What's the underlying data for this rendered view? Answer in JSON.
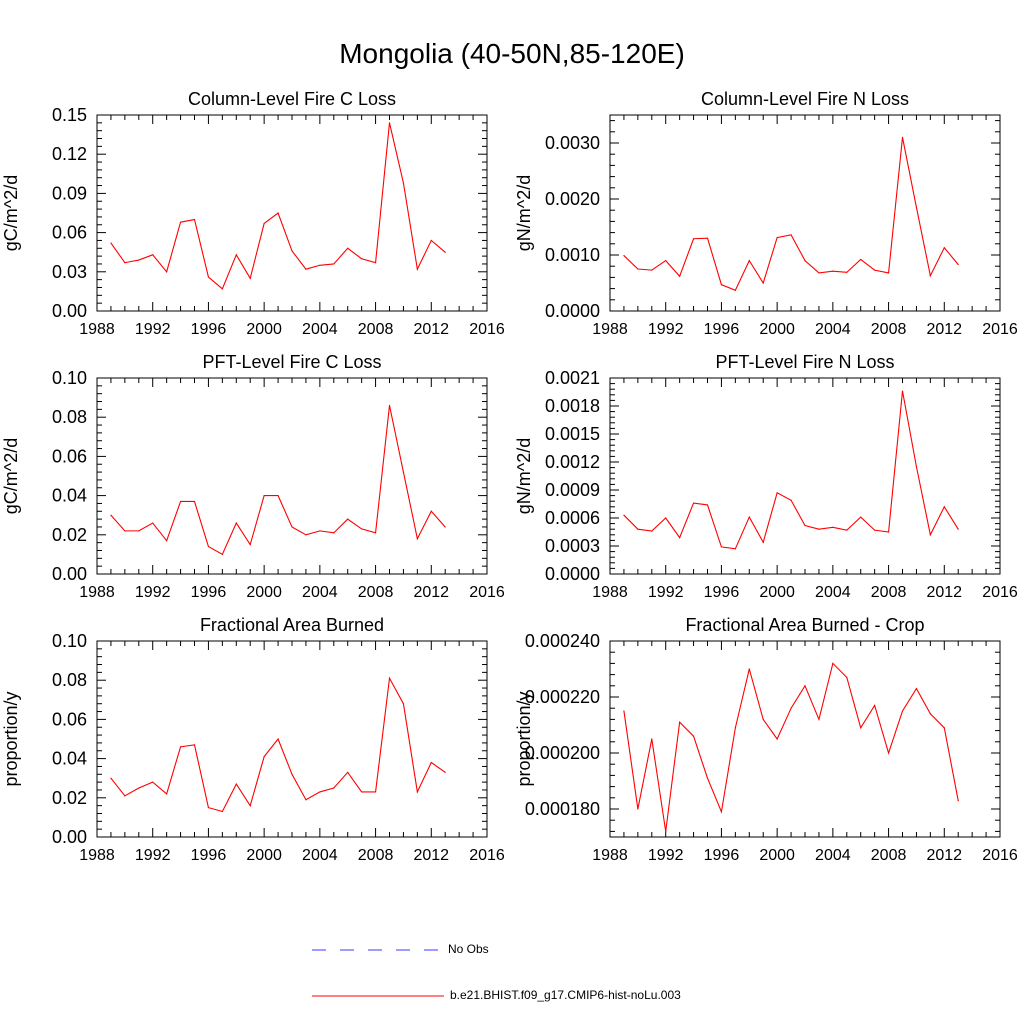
{
  "page": {
    "title": "Mongolia (40-50N,85-120E)"
  },
  "legend": {
    "entries": [
      {
        "label": "No Obs",
        "color": "#3b3bff",
        "style": "dashed"
      },
      {
        "label": "b.e21.BHIST.f09_g17.CMIP6-hist-noLu.003",
        "color": "#ff0000",
        "style": "solid"
      }
    ]
  },
  "chart_data": [
    {
      "type": "line",
      "title": "Column-Level Fire C Loss",
      "ylabel": "gC/m^2/d",
      "xlim": [
        1988,
        2016
      ],
      "ylim": [
        0,
        0.15
      ],
      "xticks": [
        "1988",
        "1992",
        "1996",
        "2000",
        "2004",
        "2008",
        "2012",
        "2016"
      ],
      "yticks": [
        "0.00",
        "0.03",
        "0.06",
        "0.09",
        "0.12",
        "0.15"
      ],
      "series": [
        {
          "color": "#ff0000",
          "x": [
            1989,
            1990,
            1991,
            1992,
            1993,
            1994,
            1995,
            1996,
            1997,
            1998,
            1999,
            2000,
            2001,
            2002,
            2003,
            2004,
            2005,
            2006,
            2007,
            2008,
            2009,
            2010,
            2011,
            2012,
            2013
          ],
          "values": [
            0.052,
            0.037,
            0.039,
            0.043,
            0.03,
            0.068,
            0.07,
            0.026,
            0.017,
            0.043,
            0.025,
            0.067,
            0.075,
            0.046,
            0.032,
            0.035,
            0.036,
            0.048,
            0.04,
            0.037,
            0.144,
            0.098,
            0.032,
            0.054,
            0.045
          ]
        }
      ]
    },
    {
      "type": "line",
      "title": "Column-Level Fire N Loss",
      "ylabel": "gN/m^2/d",
      "xlim": [
        1988,
        2016
      ],
      "ylim": [
        0,
        0.0035
      ],
      "xticks": [
        "1988",
        "1992",
        "1996",
        "2000",
        "2004",
        "2008",
        "2012",
        "2016"
      ],
      "yticks": [
        "0.0000",
        "0.0010",
        "0.0020",
        "0.0030"
      ],
      "series": [
        {
          "color": "#ff0000",
          "x": [
            1989,
            1990,
            1991,
            1992,
            1993,
            1994,
            1995,
            1996,
            1997,
            1998,
            1999,
            2000,
            2001,
            2002,
            2003,
            2004,
            2005,
            2006,
            2007,
            2008,
            2009,
            2010,
            2011,
            2012,
            2013
          ],
          "values": [
            0.00099,
            0.00075,
            0.00073,
            0.0009,
            0.00062,
            0.00129,
            0.0013,
            0.00047,
            0.00037,
            0.0009,
            0.0005,
            0.00131,
            0.00136,
            0.0009,
            0.00068,
            0.00071,
            0.00069,
            0.00092,
            0.00073,
            0.00068,
            0.0031,
            0.00185,
            0.00063,
            0.00113,
            0.00083
          ]
        }
      ]
    },
    {
      "type": "line",
      "title": "PFT-Level Fire C Loss",
      "ylabel": "gC/m^2/d",
      "xlim": [
        1988,
        2016
      ],
      "ylim": [
        0,
        0.1
      ],
      "xticks": [
        "1988",
        "1992",
        "1996",
        "2000",
        "2004",
        "2008",
        "2012",
        "2016"
      ],
      "yticks": [
        "0.00",
        "0.02",
        "0.04",
        "0.06",
        "0.08",
        "0.10"
      ],
      "series": [
        {
          "color": "#ff0000",
          "x": [
            1989,
            1990,
            1991,
            1992,
            1993,
            1994,
            1995,
            1996,
            1997,
            1998,
            1999,
            2000,
            2001,
            2002,
            2003,
            2004,
            2005,
            2006,
            2007,
            2008,
            2009,
            2010,
            2011,
            2012,
            2013
          ],
          "values": [
            0.03,
            0.022,
            0.022,
            0.026,
            0.017,
            0.037,
            0.037,
            0.014,
            0.01,
            0.026,
            0.015,
            0.04,
            0.04,
            0.024,
            0.02,
            0.022,
            0.021,
            0.028,
            0.023,
            0.021,
            0.086,
            0.052,
            0.018,
            0.032,
            0.024
          ]
        }
      ]
    },
    {
      "type": "line",
      "title": "PFT-Level Fire N Loss",
      "ylabel": "gN/m^2/d",
      "xlim": [
        1988,
        2016
      ],
      "ylim": [
        0,
        0.0021
      ],
      "xticks": [
        "1988",
        "1992",
        "1996",
        "2000",
        "2004",
        "2008",
        "2012",
        "2016"
      ],
      "yticks": [
        "0.0000",
        "0.0003",
        "0.0006",
        "0.0009",
        "0.0012",
        "0.0015",
        "0.0018",
        "0.0021"
      ],
      "series": [
        {
          "color": "#ff0000",
          "x": [
            1989,
            1990,
            1991,
            1992,
            1993,
            1994,
            1995,
            1996,
            1997,
            1998,
            1999,
            2000,
            2001,
            2002,
            2003,
            2004,
            2005,
            2006,
            2007,
            2008,
            2009,
            2010,
            2011,
            2012,
            2013
          ],
          "values": [
            0.00063,
            0.00048,
            0.00046,
            0.0006,
            0.00039,
            0.00076,
            0.00074,
            0.00029,
            0.00027,
            0.00061,
            0.00034,
            0.00087,
            0.00079,
            0.00052,
            0.00048,
            0.0005,
            0.00047,
            0.00061,
            0.00047,
            0.00045,
            0.00196,
            0.00115,
            0.00042,
            0.00072,
            0.00048
          ]
        }
      ]
    },
    {
      "type": "line",
      "title": "Fractional Area Burned",
      "ylabel": "proportion/y",
      "xlim": [
        1988,
        2016
      ],
      "ylim": [
        0,
        0.1
      ],
      "xticks": [
        "1988",
        "1992",
        "1996",
        "2000",
        "2004",
        "2008",
        "2012",
        "2016"
      ],
      "yticks": [
        "0.00",
        "0.02",
        "0.04",
        "0.06",
        "0.08",
        "0.10"
      ],
      "series": [
        {
          "color": "#ff0000",
          "x": [
            1989,
            1990,
            1991,
            1992,
            1993,
            1994,
            1995,
            1996,
            1997,
            1998,
            1999,
            2000,
            2001,
            2002,
            2003,
            2004,
            2005,
            2006,
            2007,
            2008,
            2009,
            2010,
            2011,
            2012,
            2013
          ],
          "values": [
            0.03,
            0.021,
            0.025,
            0.028,
            0.022,
            0.046,
            0.047,
            0.015,
            0.013,
            0.027,
            0.016,
            0.041,
            0.05,
            0.032,
            0.019,
            0.023,
            0.025,
            0.033,
            0.023,
            0.023,
            0.081,
            0.068,
            0.023,
            0.038,
            0.033
          ]
        }
      ]
    },
    {
      "type": "line",
      "title": "Fractional Area Burned - Crop",
      "ylabel": "proportion/y",
      "xlim": [
        1988,
        2016
      ],
      "ylim": [
        0.00017,
        0.00024
      ],
      "xticks": [
        "1988",
        "1992",
        "1996",
        "2000",
        "2004",
        "2008",
        "2012",
        "2016"
      ],
      "yticks": [
        "0.000180",
        "0.000200",
        "0.000220",
        "0.000240"
      ],
      "series": [
        {
          "color": "#ff0000",
          "x": [
            1989,
            1990,
            1991,
            1992,
            1993,
            1994,
            1995,
            1996,
            1997,
            1998,
            1999,
            2000,
            2001,
            2002,
            2003,
            2004,
            2005,
            2006,
            2007,
            2008,
            2009,
            2010,
            2011,
            2012,
            2013
          ],
          "values": [
            0.000215,
            0.00018,
            0.000205,
            0.000172,
            0.000211,
            0.000206,
            0.000191,
            0.000179,
            0.000209,
            0.00023,
            0.000212,
            0.000205,
            0.000216,
            0.000224,
            0.000212,
            0.000232,
            0.000227,
            0.000209,
            0.000217,
            0.0002,
            0.000215,
            0.000223,
            0.000214,
            0.000209,
            0.000183
          ]
        }
      ]
    }
  ]
}
